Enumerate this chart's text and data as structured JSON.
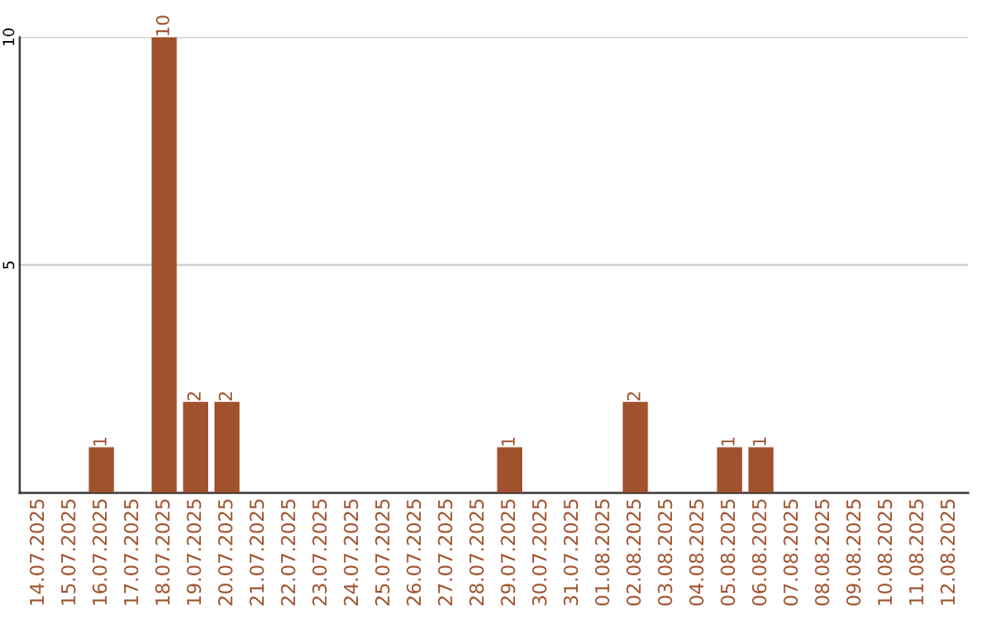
{
  "chart_data": {
    "type": "bar",
    "categories": [
      "14.07.2025",
      "15.07.2025",
      "16.07.2025",
      "17.07.2025",
      "18.07.2025",
      "19.07.2025",
      "20.07.2025",
      "21.07.2025",
      "22.07.2025",
      "23.07.2025",
      "24.07.2025",
      "25.07.2025",
      "26.07.2025",
      "27.07.2025",
      "28.07.2025",
      "29.07.2025",
      "30.07.2025",
      "31.07.2025",
      "01.08.2025",
      "02.08.2025",
      "03.08.2025",
      "04.08.2025",
      "05.08.2025",
      "06.08.2025",
      "07.08.2025",
      "08.08.2025",
      "09.08.2025",
      "10.08.2025",
      "11.08.2025",
      "12.08.2025"
    ],
    "values": [
      0,
      0,
      1,
      0,
      10,
      2,
      2,
      0,
      0,
      0,
      0,
      0,
      0,
      0,
      0,
      1,
      0,
      0,
      0,
      2,
      0,
      0,
      1,
      1,
      0,
      0,
      0,
      0,
      0,
      0
    ],
    "value_labels": [
      null,
      null,
      "1",
      null,
      "10",
      "2",
      "2",
      null,
      null,
      null,
      null,
      null,
      null,
      null,
      null,
      "1",
      null,
      null,
      null,
      "2",
      null,
      null,
      "1",
      "1",
      null,
      null,
      null,
      null,
      null,
      null
    ],
    "color": "#a0522d",
    "ylim": [
      0,
      10
    ],
    "yticks": [
      5,
      10
    ],
    "grid": "y"
  }
}
